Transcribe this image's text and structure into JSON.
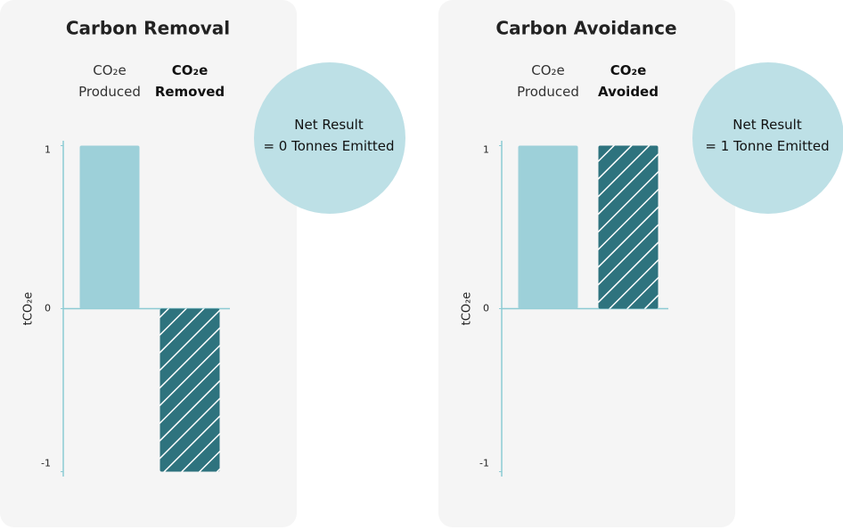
{
  "chart_data": [
    {
      "type": "bar",
      "title": "Carbon Removal",
      "categories": [
        "CO₂e\nProduced",
        "CO₂e\nRemoved"
      ],
      "values": [
        1,
        -1
      ],
      "colors": [
        "#9dd0d9",
        "#2e737e"
      ],
      "hatch": [
        false,
        true
      ],
      "y_label": "tCO₂e",
      "ylim": [
        -1.03,
        1.03
      ],
      "yticks": [
        1,
        0,
        -1
      ],
      "annotation": "Net Result\n= 0 Tonnes Emitted"
    },
    {
      "type": "bar",
      "title": "Carbon Avoidance",
      "categories": [
        "CO₂e\nProduced",
        "CO₂e\nAvoided"
      ],
      "values": [
        1,
        1
      ],
      "colors": [
        "#9dd0d9",
        "#2e737e"
      ],
      "hatch": [
        false,
        true
      ],
      "y_label": "tCO₂e",
      "ylim": [
        -1.03,
        1.03
      ],
      "yticks": [
        1,
        0,
        -1
      ],
      "annotation": "Net Result\n= 1 Tonne Emitted"
    }
  ]
}
